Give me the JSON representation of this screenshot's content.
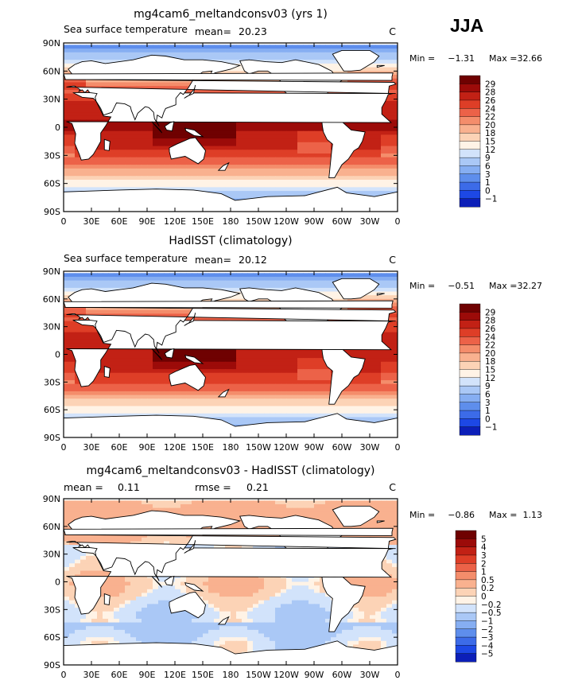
{
  "season": "JJA",
  "colors": {
    "warm_scale": [
      "#08007a",
      "#0c1fb8",
      "#1d48e5",
      "#3c6be8",
      "#5e8eec",
      "#86aef2",
      "#aac8f6",
      "#d2e3fb",
      "#fff3e6",
      "#fcd3b6",
      "#f9b18f",
      "#f48d6b",
      "#ec6248",
      "#de3e27",
      "#c22115",
      "#9c0b09",
      "#6f0101"
    ],
    "land": "#ffffff",
    "border": "#000000"
  },
  "panels": [
    {
      "title": "mg4cam6_meltandconsv03 (yrs 1)",
      "left_label": "Sea surface temperature",
      "stat_label": "mean=",
      "stat_value": "20.23",
      "stat2_label": "",
      "stat2_value": "",
      "unit": "C",
      "min_label": "Min =",
      "min_value": "−1.31",
      "max_label": "Max =",
      "max_value": "32.66",
      "colorbar": [
        "29",
        "28",
        "26",
        "24",
        "22",
        "20",
        "18",
        "15",
        "12",
        "9",
        "6",
        "3",
        "1",
        "0",
        "−1"
      ]
    },
    {
      "title": "HadISST (climatology)",
      "left_label": "Sea surface temperature",
      "stat_label": "mean=",
      "stat_value": "20.12",
      "stat2_label": "",
      "stat2_value": "",
      "unit": "C",
      "min_label": "Min =",
      "min_value": "−0.51",
      "max_label": "Max =",
      "max_value": "32.27",
      "colorbar": [
        "29",
        "28",
        "26",
        "24",
        "22",
        "20",
        "18",
        "15",
        "12",
        "9",
        "6",
        "3",
        "1",
        "0",
        "−1"
      ]
    },
    {
      "title": "mg4cam6_meltandconsv03 - HadISST (climatology)",
      "left_label": "",
      "stat_label": "mean =",
      "stat_value": "0.11",
      "stat2_label": "rmse =",
      "stat2_value": "0.21",
      "unit": "C",
      "min_label": "Min =",
      "min_value": "−0.86",
      "max_label": "Max =",
      "max_value": "1.13",
      "colorbar": [
        "5",
        "4",
        "3",
        "2",
        "1",
        "0.5",
        "0.2",
        "0",
        "−0.2",
        "−0.5",
        "−1",
        "−2",
        "−3",
        "−4",
        "−5"
      ]
    }
  ],
  "chart_data": [
    {
      "type": "heatmap",
      "title": "mg4cam6_meltandconsv03 (yrs 1)",
      "variable": "Sea surface temperature",
      "units": "C",
      "mean": 20.23,
      "min": -1.31,
      "max": 32.66,
      "x_ticks": [
        "0",
        "30E",
        "60E",
        "90E",
        "120E",
        "150E",
        "180",
        "150W",
        "120W",
        "90W",
        "60W",
        "30W",
        "0"
      ],
      "y_ticks": [
        "90N",
        "60N",
        "30N",
        "0",
        "30S",
        "60S",
        "90S"
      ],
      "xlim": [
        0,
        360
      ],
      "ylim": [
        -90,
        90
      ],
      "levels": [
        -1,
        0,
        1,
        3,
        6,
        9,
        12,
        15,
        18,
        20,
        22,
        24,
        26,
        28,
        29
      ]
    },
    {
      "type": "heatmap",
      "title": "HadISST (climatology)",
      "variable": "Sea surface temperature",
      "units": "C",
      "mean": 20.12,
      "min": -0.51,
      "max": 32.27,
      "x_ticks": [
        "0",
        "30E",
        "60E",
        "90E",
        "120E",
        "150E",
        "180",
        "150W",
        "120W",
        "90W",
        "60W",
        "30W",
        "0"
      ],
      "y_ticks": [
        "90N",
        "60N",
        "30N",
        "0",
        "30S",
        "60S",
        "90S"
      ],
      "xlim": [
        0,
        360
      ],
      "ylim": [
        -90,
        90
      ],
      "levels": [
        -1,
        0,
        1,
        3,
        6,
        9,
        12,
        15,
        18,
        20,
        22,
        24,
        26,
        28,
        29
      ]
    },
    {
      "type": "heatmap",
      "title": "mg4cam6_meltandconsv03 - HadISST (climatology)",
      "units": "C",
      "mean": 0.11,
      "rmse": 0.21,
      "min": -0.86,
      "max": 1.13,
      "x_ticks": [
        "0",
        "30E",
        "60E",
        "90E",
        "120E",
        "150E",
        "180",
        "150W",
        "120W",
        "90W",
        "60W",
        "30W",
        "0"
      ],
      "y_ticks": [
        "90N",
        "60N",
        "30N",
        "0",
        "30S",
        "60S",
        "90S"
      ],
      "xlim": [
        0,
        360
      ],
      "ylim": [
        -90,
        90
      ],
      "levels": [
        -5,
        -4,
        -3,
        -2,
        -1,
        -0.5,
        -0.2,
        0,
        0.2,
        0.5,
        1,
        2,
        3,
        4,
        5
      ]
    }
  ]
}
